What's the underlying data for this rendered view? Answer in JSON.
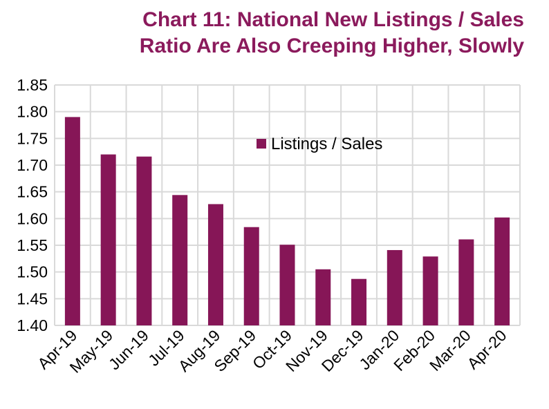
{
  "title_line1": "Chart 11: National New Listings / Sales",
  "title_line2": "Ratio Are Also Creeping Higher, Slowly",
  "chart_data": {
    "type": "bar",
    "title": "Chart 11: National New Listings / Sales Ratio Are Also Creeping Higher, Slowly",
    "categories": [
      "Apr-19",
      "May-19",
      "Jun-19",
      "Jul-19",
      "Aug-19",
      "Sep-19",
      "Oct-19",
      "Nov-19",
      "Dec-19",
      "Jan-20",
      "Feb-20",
      "Mar-20",
      "Apr-20"
    ],
    "series": [
      {
        "name": "Listings / Sales",
        "values": [
          1.79,
          1.72,
          1.716,
          1.644,
          1.627,
          1.584,
          1.551,
          1.505,
          1.487,
          1.541,
          1.529,
          1.561,
          1.602
        ]
      }
    ],
    "ylim": [
      1.4,
      1.85
    ],
    "yticks": [
      "1.40",
      "1.45",
      "1.50",
      "1.55",
      "1.60",
      "1.65",
      "1.70",
      "1.75",
      "1.80",
      "1.85"
    ],
    "grid": true,
    "legend_position": "top-center",
    "colors": {
      "bar": "#861657",
      "title": "#8B1A5C",
      "grid": "#d9d9d9"
    }
  }
}
